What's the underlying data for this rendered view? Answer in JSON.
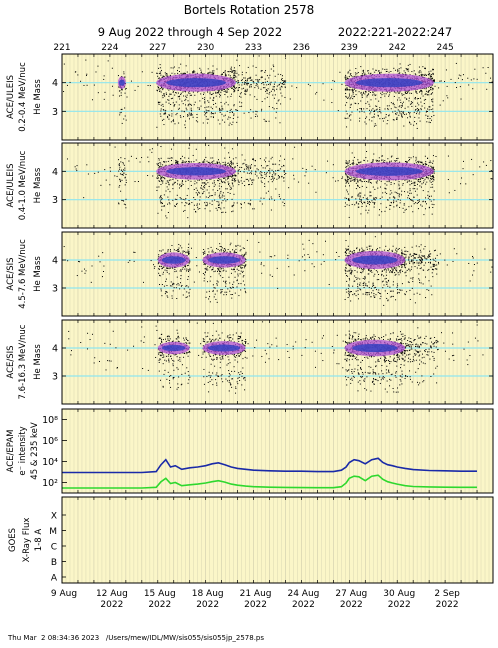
{
  "header": {
    "title": "Bortels Rotation 2578",
    "date_range": "9 Aug 2022 through 4 Sep 2022",
    "doy_range": "2022:221-2022:247"
  },
  "footer": {
    "timestamp": "Thu Mar  2 08:34:36 2023",
    "path": "/Users/mew/IDL/MW/sis055/sis055jp_2578.ps"
  },
  "chart_data": [
    {
      "type": "scatter",
      "instrument": "ACE/ULEIS",
      "energy": "0.2-0.4 MeV/nuc",
      "ylabel": "He Mass",
      "ylim": [
        2.0,
        5.0
      ],
      "yticks": [
        "4",
        "3"
      ],
      "activity": [
        {
          "start": 224.5,
          "end": 225.0,
          "level": 0.6
        },
        {
          "start": 226.9,
          "end": 231.9,
          "level": 1.0
        },
        {
          "start": 231.9,
          "end": 235.0,
          "level": 0.35
        },
        {
          "start": 238.7,
          "end": 244.3,
          "level": 1.0
        }
      ]
    },
    {
      "type": "scatter",
      "instrument": "ACE/ULEIS",
      "energy": "0.4-1.0 MeV/nuc",
      "ylabel": "He Mass",
      "ylim": [
        2.0,
        5.0
      ],
      "yticks": [
        "4",
        "3"
      ],
      "activity": [
        {
          "start": 224.5,
          "end": 225.0,
          "level": 0.5
        },
        {
          "start": 226.9,
          "end": 231.9,
          "level": 0.9
        },
        {
          "start": 231.9,
          "end": 235.0,
          "level": 0.3
        },
        {
          "start": 238.7,
          "end": 244.3,
          "level": 1.0
        }
      ]
    },
    {
      "type": "scatter",
      "instrument": "ACE/SIS",
      "energy": "4.5-7.6 MeV/nuc",
      "ylabel": "He Mass",
      "ylim": [
        2.0,
        5.0
      ],
      "yticks": [
        "4",
        "3"
      ],
      "activity": [
        {
          "start": 227.0,
          "end": 229.0,
          "level": 0.8
        },
        {
          "start": 229.8,
          "end": 232.5,
          "level": 0.8
        },
        {
          "start": 238.7,
          "end": 242.5,
          "level": 1.0
        },
        {
          "start": 242.5,
          "end": 244.5,
          "level": 0.4
        }
      ]
    },
    {
      "type": "scatter",
      "instrument": "ACE/SIS",
      "energy": "7.6-16.3 MeV/nuc",
      "ylabel": "He Mass",
      "ylim": [
        2.0,
        5.0
      ],
      "yticks": [
        "4",
        "3"
      ],
      "activity": [
        {
          "start": 227.0,
          "end": 229.0,
          "level": 0.6
        },
        {
          "start": 229.8,
          "end": 232.5,
          "level": 0.7
        },
        {
          "start": 238.7,
          "end": 242.5,
          "level": 0.9
        },
        {
          "start": 242.5,
          "end": 244.5,
          "level": 0.35
        }
      ]
    },
    {
      "type": "line",
      "instrument": "ACE/EPAM",
      "ylabel_top": "e⁻ intensity",
      "ylabel_bottom": "45 & 235 keV",
      "ylim": [
        10,
        1000000000.0
      ],
      "log": true,
      "yticks": [
        {
          "value": 100,
          "label": "10²"
        },
        {
          "value": 10000,
          "label": "10⁴"
        },
        {
          "value": 1000000,
          "label": "10⁶"
        },
        {
          "value": 100000000,
          "label": "10⁸"
        }
      ],
      "series": [
        {
          "color": "#1a2aa8",
          "x": [
            221,
            222,
            224,
            226,
            226.9,
            227.2,
            227.5,
            227.8,
            228.1,
            228.5,
            229.0,
            229.5,
            230.0,
            230.4,
            230.8,
            231.2,
            231.6,
            232.0,
            232.5,
            233.0,
            234.0,
            235.0,
            236.0,
            237.0,
            238.0,
            238.5,
            238.8,
            239.0,
            239.3,
            239.6,
            240.0,
            240.4,
            240.8,
            241.1,
            241.4,
            241.7,
            242.0,
            242.5,
            243.0,
            244.0,
            245.0,
            246.0,
            247.0
          ],
          "y": [
            900,
            900,
            900,
            900,
            1100,
            5000,
            15000,
            3000,
            4000,
            1800,
            2500,
            3000,
            4000,
            6000,
            7500,
            5000,
            3000,
            2200,
            1800,
            1500,
            1300,
            1200,
            1200,
            1100,
            1100,
            1500,
            3000,
            8000,
            15000,
            12000,
            6000,
            15000,
            20000,
            8000,
            5000,
            4000,
            3000,
            2200,
            1700,
            1400,
            1300,
            1200,
            1200
          ]
        },
        {
          "color": "#2ed82e",
          "x": [
            221,
            222,
            224,
            226,
            226.9,
            227.2,
            227.5,
            227.8,
            228.1,
            228.5,
            229.0,
            229.5,
            230.0,
            230.4,
            230.8,
            231.2,
            231.6,
            232.0,
            232.5,
            233.0,
            234.0,
            235.0,
            236.0,
            237.0,
            238.0,
            238.5,
            238.8,
            239.0,
            239.3,
            239.6,
            240.0,
            240.4,
            240.8,
            241.1,
            241.4,
            241.7,
            242.0,
            242.5,
            243.0,
            244.0,
            245.0,
            246.0,
            247.0
          ],
          "y": [
            30,
            30,
            30,
            30,
            35,
            120,
            250,
            80,
            100,
            50,
            60,
            70,
            90,
            120,
            150,
            110,
            70,
            55,
            45,
            40,
            36,
            34,
            33,
            32,
            32,
            40,
            90,
            250,
            400,
            350,
            150,
            400,
            500,
            200,
            120,
            90,
            70,
            50,
            42,
            38,
            36,
            35,
            35
          ]
        }
      ]
    },
    {
      "type": "line",
      "instrument": "GOES",
      "ylabel_top": "X-Ray Flux",
      "ylabel_bottom": "1-8 A",
      "yticks": [
        "X",
        "M",
        "C",
        "B",
        "A"
      ],
      "series": []
    }
  ],
  "x_axis": {
    "doy_start": 221,
    "doy_end": 248,
    "top_doy_ticks": [
      "221",
      "224",
      "227",
      "230",
      "233",
      "236",
      "239",
      "242",
      "245"
    ],
    "date_ticks": [
      {
        "doy": 221,
        "day": "9 Aug",
        "year": ""
      },
      {
        "doy": 224,
        "day": "12 Aug",
        "year": "2022"
      },
      {
        "doy": 227,
        "day": "15 Aug",
        "year": "2022"
      },
      {
        "doy": 230,
        "day": "18 Aug",
        "year": "2022"
      },
      {
        "doy": 233,
        "day": "21 Aug",
        "year": "2022"
      },
      {
        "doy": 236,
        "day": "24 Aug",
        "year": "2022"
      },
      {
        "doy": 239,
        "day": "27 Aug",
        "year": "2022"
      },
      {
        "doy": 242,
        "day": "30 Aug",
        "year": "2022"
      },
      {
        "doy": 245,
        "day": "2 Sep",
        "year": "2022"
      }
    ]
  },
  "colors": {
    "background": "#fbf6c8",
    "solar_wind_grid": "#c9c6a8",
    "mass_lines": "#8fe6ef",
    "scatter": "#000000",
    "density_mid": "#b050d8",
    "density_high": "#3040c0"
  }
}
